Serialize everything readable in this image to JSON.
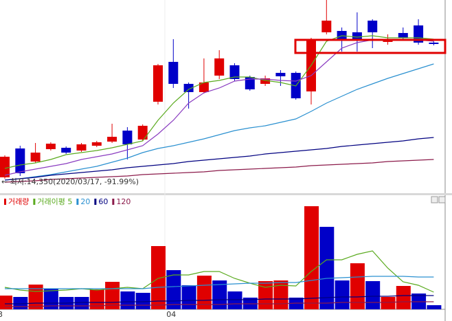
{
  "chart_data": [
    {
      "type": "candlestick",
      "annotation": "← 최저:14,350(2020/03/17, -91.99%)",
      "ylim": [
        0,
        280
      ],
      "up_color": "#e00000",
      "down_color": "#0000c8",
      "open": [
        22,
        64,
        45,
        63,
        65,
        61,
        68,
        74,
        90,
        77,
        132,
        190,
        158,
        146,
        170,
        185,
        168,
        158,
        174,
        174,
        147,
        233,
        235,
        233,
        250,
        219,
        232,
        243,
        218
      ],
      "high": [
        54,
        68,
        72,
        73,
        67,
        72,
        75,
        100,
        95,
        99,
        187,
        223,
        160,
        195,
        207,
        188,
        170,
        170,
        178,
        176,
        225,
        280,
        240,
        262,
        252,
        230,
        240,
        252,
        220
      ],
      "low": [
        20,
        24,
        43,
        61,
        56,
        59,
        66,
        72,
        48,
        75,
        128,
        152,
        122,
        144,
        165,
        162,
        148,
        155,
        155,
        135,
        128,
        230,
        205,
        205,
        210,
        215,
        222,
        215,
        214
      ],
      "close": [
        52,
        28,
        58,
        71,
        58,
        70,
        73,
        81,
        70,
        97,
        185,
        158,
        146,
        160,
        195,
        165,
        150,
        166,
        169,
        137,
        223,
        250,
        223,
        222,
        233,
        222,
        225,
        218,
        216
      ],
      "series": [
        {
          "color": "#5aaa1e",
          "values": [
            35,
            40,
            43,
            48,
            55,
            58,
            61,
            65,
            70,
            75,
            105,
            130,
            150,
            160,
            163,
            168,
            168,
            163,
            160,
            155,
            185,
            220,
            228,
            226,
            228,
            225,
            225,
            225,
            223
          ]
        },
        {
          "color": "#8a3cc0",
          "values": [
            25,
            30,
            34,
            38,
            42,
            48,
            52,
            56,
            62,
            68,
            85,
            105,
            130,
            145,
            152,
            162,
            165,
            165,
            163,
            162,
            170,
            190,
            210,
            218,
            222,
            222,
            222,
            222,
            220
          ]
        },
        {
          "color": "#2a90d0",
          "values": [
            18,
            20,
            23,
            26,
            30,
            34,
            38,
            44,
            50,
            58,
            64,
            68,
            73,
            78,
            84,
            90,
            94,
            97,
            102,
            107,
            118,
            130,
            140,
            150,
            158,
            166,
            173,
            180,
            187
          ]
        },
        {
          "color": "#000080",
          "values": [
            18,
            20,
            22,
            25,
            27,
            29,
            31,
            33,
            36,
            38,
            40,
            42,
            45,
            47,
            49,
            51,
            53,
            56,
            58,
            60,
            62,
            64,
            67,
            69,
            71,
            73,
            75,
            78,
            80
          ]
        },
        {
          "color": "#8b1a4a",
          "values": [
            15,
            16,
            17,
            19,
            20,
            21,
            22,
            23,
            24,
            26,
            27,
            28,
            29,
            30,
            32,
            33,
            34,
            35,
            36,
            37,
            39,
            40,
            41,
            42,
            43,
            45,
            46,
            47,
            48
          ]
        }
      ]
    },
    {
      "type": "bar",
      "categories": [
        "3",
        null,
        null,
        null,
        null,
        null,
        null,
        null,
        null,
        null,
        null,
        "04",
        null,
        null,
        null,
        null,
        null,
        null,
        null,
        null,
        null,
        null,
        null,
        null,
        null,
        null,
        null,
        null,
        null
      ],
      "ylim": [
        0,
        165
      ],
      "values": [
        20,
        18,
        36,
        30,
        18,
        18,
        29,
        40,
        26,
        24,
        92,
        57,
        35,
        49,
        42,
        26,
        17,
        41,
        42,
        17,
        150,
        120,
        42,
        67,
        41,
        18,
        34,
        23,
        6
      ],
      "bar_colors": [
        "#e00000",
        "#0000c8",
        "#e00000",
        "#0000c8",
        "#0000c8",
        "#0000c8",
        "#e00000",
        "#e00000",
        "#0000c8",
        "#0000c8",
        "#e00000",
        "#0000c8",
        "#0000c8",
        "#e00000",
        "#0000c8",
        "#0000c8",
        "#0000c8",
        "#e00000",
        "#e00000",
        "#0000c8",
        "#e00000",
        "#0000c8",
        "#0000c8",
        "#e00000",
        "#0000c8",
        "#e00000",
        "#e00000",
        "#0000c8",
        "#0000c8"
      ],
      "legend_name": "거래량",
      "legend_color": "#e00000",
      "series": [
        {
          "name": "거래이평 5",
          "color": "#5aaa1e",
          "values": [
            32,
            28,
            26,
            27,
            28,
            30,
            28,
            30,
            32,
            30,
            45,
            50,
            50,
            55,
            55,
            45,
            38,
            32,
            35,
            34,
            55,
            72,
            72,
            80,
            85,
            60,
            40,
            35,
            25
          ]
        },
        {
          "name": "20",
          "color": "#2a90d0",
          "values": [
            30,
            30,
            30,
            30,
            30,
            30,
            30,
            30,
            30,
            30,
            32,
            33,
            34,
            35,
            36,
            37,
            38,
            38,
            39,
            39,
            42,
            45,
            46,
            47,
            48,
            48,
            48,
            47,
            47
          ]
        },
        {
          "name": "60",
          "color": "#000080",
          "values": [
            8,
            8,
            9,
            9,
            9,
            10,
            10,
            10,
            11,
            11,
            12,
            12,
            13,
            13,
            14,
            14,
            14,
            15,
            15,
            15,
            16,
            17,
            18,
            18,
            19,
            19,
            20,
            20,
            20
          ]
        },
        {
          "name": "120",
          "color": "#8b1a4a",
          "values": [
            4,
            4,
            4,
            5,
            5,
            5,
            5,
            6,
            6,
            6,
            6,
            7,
            7,
            7,
            7,
            8,
            8,
            8,
            8,
            9,
            9,
            9,
            10,
            10,
            10,
            10,
            11,
            11,
            11
          ]
        }
      ]
    }
  ]
}
